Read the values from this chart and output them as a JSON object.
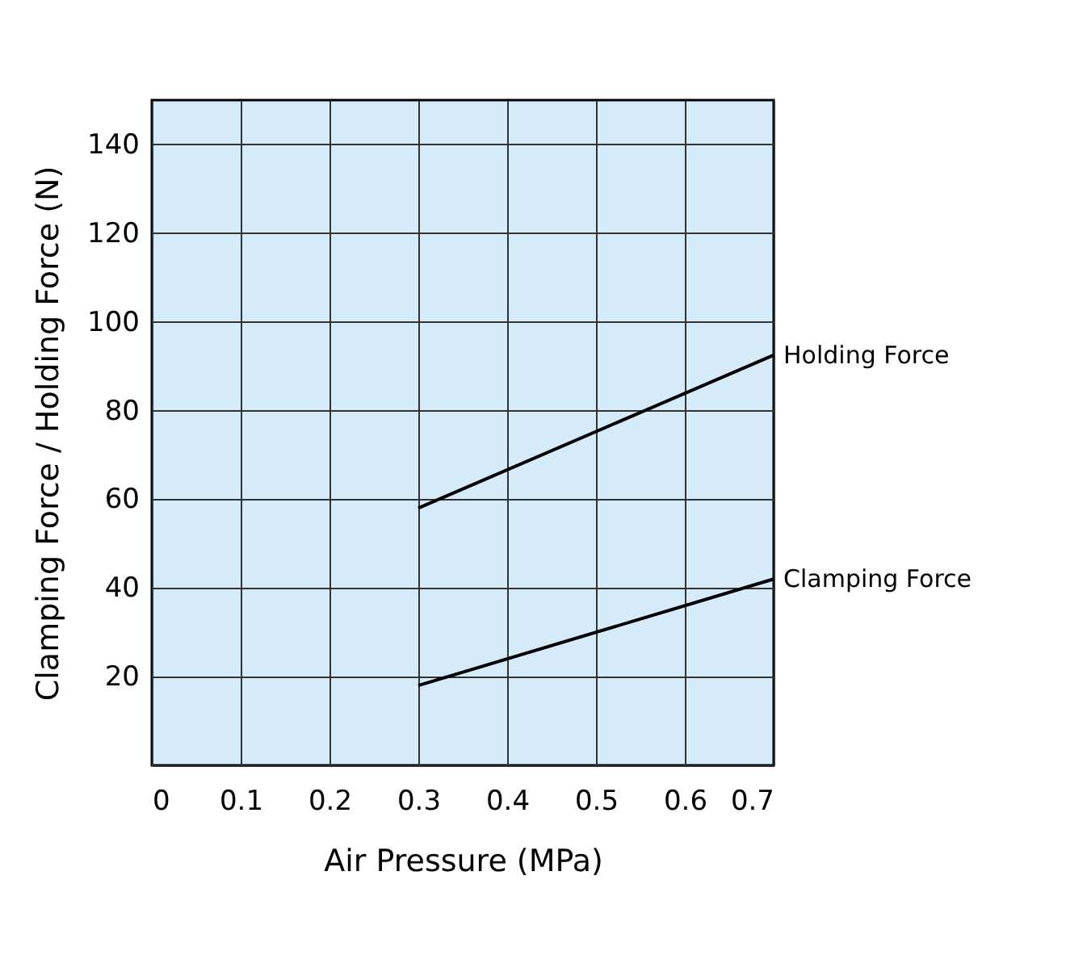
{
  "chart_data": {
    "type": "line",
    "xlabel": "Air Pressure (MPa)",
    "ylabel": "Clamping Force / Holding Force (N)",
    "xlim": [
      0,
      0.7
    ],
    "xticks": [
      0,
      0.1,
      0.2,
      0.3,
      0.4,
      0.5,
      0.6,
      0.7
    ],
    "ylim": [
      0,
      150
    ],
    "yticks": [
      {
        "value": 0,
        "label": null
      },
      20,
      40,
      60,
      80,
      100,
      120,
      140
    ],
    "x": [
      0.3,
      0.7
    ],
    "grid": true,
    "legend": false,
    "marker": "none",
    "line_style": "solid",
    "series": [
      {
        "name": "Holding Force",
        "color": "#000000",
        "values": [
          58,
          92.5
        ]
      },
      {
        "name": "Clamping Force",
        "color": "#000000",
        "values": [
          18,
          42
        ]
      }
    ]
  }
}
